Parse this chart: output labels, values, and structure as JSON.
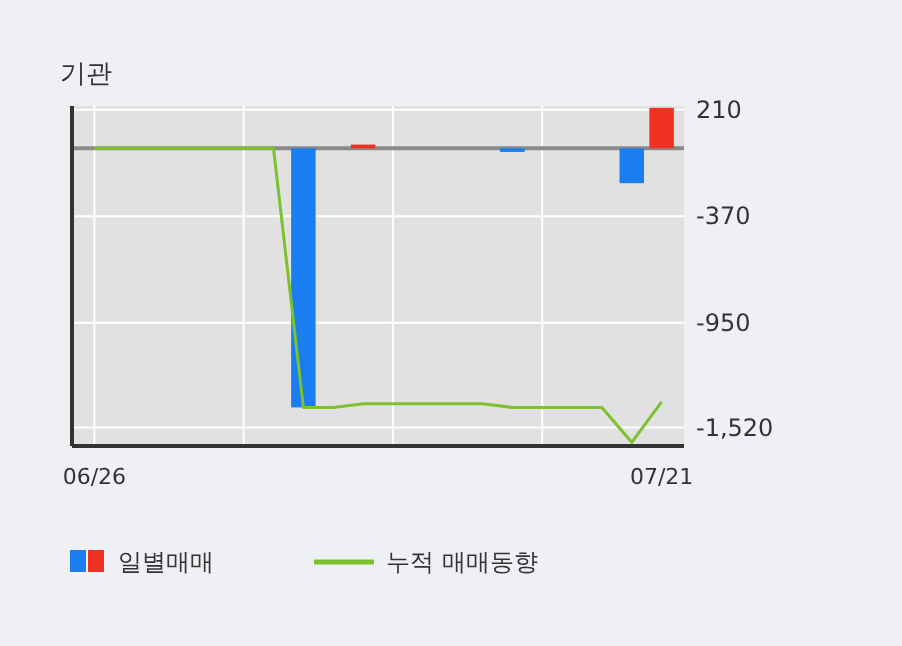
{
  "chart_data": {
    "type": "bar",
    "title": "기관",
    "categories": [
      "06/26",
      null,
      null,
      null,
      null,
      null,
      null,
      null,
      null,
      null,
      null,
      null,
      null,
      null,
      null,
      null,
      null,
      null,
      null,
      "07/21"
    ],
    "series": [
      {
        "name": "일별매매",
        "values": [
          null,
          null,
          null,
          null,
          null,
          null,
          null,
          -1410,
          null,
          20,
          null,
          null,
          null,
          null,
          -20,
          null,
          null,
          null,
          -190,
          220
        ],
        "colors": [
          null,
          null,
          null,
          null,
          null,
          null,
          null,
          "#1a7ef0",
          null,
          "#f03020",
          null,
          null,
          null,
          null,
          "#1a7ef0",
          null,
          null,
          null,
          "#1a7ef0",
          "#f03020"
        ]
      },
      {
        "name": "누적 매매동향",
        "type": "line",
        "color": "#7cc12e",
        "values": [
          0,
          0,
          0,
          0,
          0,
          0,
          0,
          -1410,
          -1410,
          -1390,
          -1390,
          -1390,
          -1390,
          -1390,
          -1410,
          -1410,
          -1410,
          -1410,
          -1600,
          -1380
        ]
      }
    ],
    "ylim": [
      -1620,
      230
    ],
    "yticks": [
      210,
      -370,
      -950,
      {
        "value": -1520,
        "label": "-1,520"
      }
    ],
    "grid": true,
    "legend": "bottom"
  }
}
